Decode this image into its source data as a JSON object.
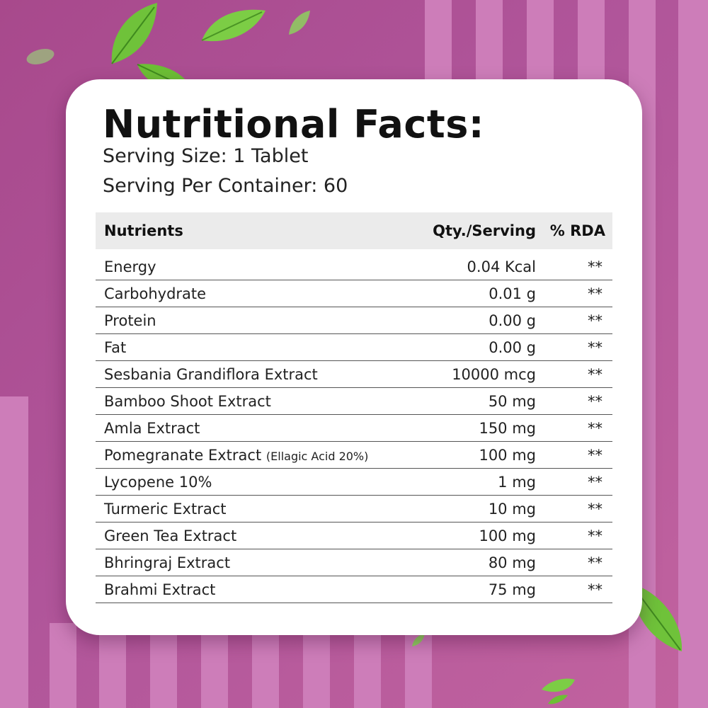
{
  "colors": {
    "background": "#a8498c",
    "stripe": "#cd7db9",
    "card": "#ffffff",
    "header_row": "#ebebeb",
    "leaf": "#6fc23a"
  },
  "icons": [
    "leaf-icon"
  ],
  "title": "Nutritional Facts:",
  "serving_size": "Serving Size: 1 Tablet",
  "serving_per_container": "Serving Per Container: 60",
  "table": {
    "headers": {
      "nutrients": "Nutrients",
      "qty": "Qty./Serving",
      "rda": "% RDA"
    },
    "rows": [
      {
        "name": "Energy",
        "note": "",
        "qty": "0.04 Kcal",
        "rda": "**"
      },
      {
        "name": "Carbohydrate",
        "note": "",
        "qty": "0.01 g",
        "rda": "**"
      },
      {
        "name": "Protein",
        "note": "",
        "qty": "0.00 g",
        "rda": "**"
      },
      {
        "name": "Fat",
        "note": "",
        "qty": "0.00 g",
        "rda": "**"
      },
      {
        "name": "Sesbania Grandiflora Extract",
        "note": "",
        "qty": "10000 mcg",
        "rda": "**"
      },
      {
        "name": "Bamboo Shoot Extract",
        "note": "",
        "qty": "50 mg",
        "rda": "**"
      },
      {
        "name": "Amla Extract",
        "note": "",
        "qty": "150 mg",
        "rda": "**"
      },
      {
        "name": "Pomegranate Extract",
        "note": "(Ellagic Acid 20%)",
        "qty": "100 mg",
        "rda": "**"
      },
      {
        "name": "Lycopene 10%",
        "note": "",
        "qty": "1 mg",
        "rda": "**"
      },
      {
        "name": "Turmeric Extract",
        "note": "",
        "qty": "10 mg",
        "rda": "**"
      },
      {
        "name": "Green Tea Extract",
        "note": "",
        "qty": "100 mg",
        "rda": "**"
      },
      {
        "name": "Bhringraj Extract",
        "note": "",
        "qty": "80 mg",
        "rda": "**"
      },
      {
        "name": "Brahmi Extract",
        "note": "",
        "qty": "75 mg",
        "rda": "**"
      }
    ]
  }
}
